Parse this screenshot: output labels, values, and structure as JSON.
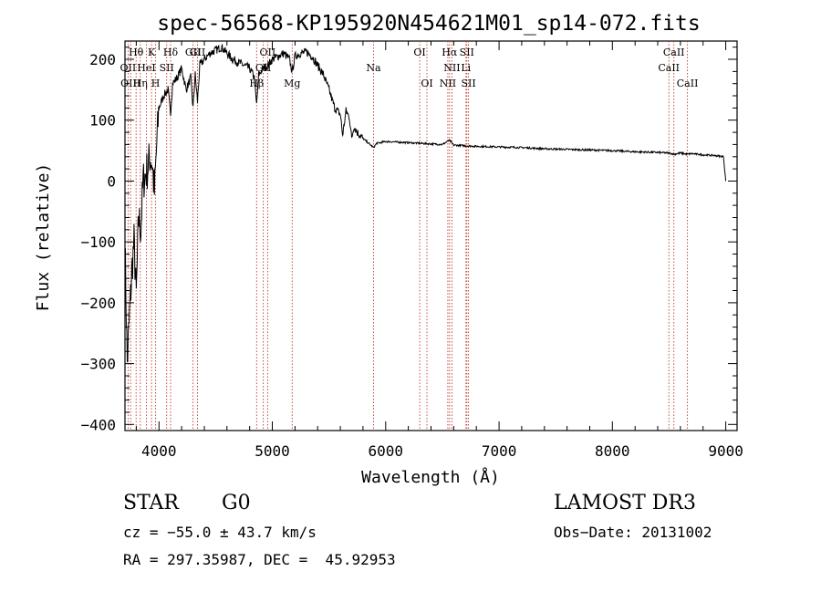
{
  "chart_data": {
    "type": "line",
    "title": "spec-56568-KP195920N454621M01_sp14-072.fits",
    "xlabel": "Wavelength (Å)",
    "ylabel": "Flux (relative)",
    "xlim": [
      3700,
      9100
    ],
    "ylim": [
      -410,
      230
    ],
    "xticks": [
      4000,
      5000,
      6000,
      7000,
      8000,
      9000
    ],
    "yticks": [
      -400,
      -300,
      -200,
      -100,
      0,
      100,
      200
    ],
    "xtick_labels": [
      "4000",
      "5000",
      "6000",
      "7000",
      "8000",
      "9000"
    ],
    "ytick_labels": [
      "−400",
      "−300",
      "−200",
      "−100",
      "0",
      "100",
      "200"
    ],
    "series": [
      {
        "name": "spectrum",
        "x": [
          3700,
          3720,
          3740,
          3760,
          3780,
          3800,
          3820,
          3840,
          3860,
          3880,
          3900,
          3920,
          3940,
          3960,
          3980,
          4000,
          4040,
          4080,
          4102,
          4120,
          4160,
          4200,
          4240,
          4280,
          4300,
          4320,
          4340,
          4360,
          4400,
          4450,
          4500,
          4550,
          4600,
          4650,
          4700,
          4750,
          4800,
          4840,
          4861,
          4880,
          4920,
          4960,
          5000,
          5050,
          5100,
          5150,
          5175,
          5200,
          5250,
          5300,
          5350,
          5400,
          5450,
          5500,
          5550,
          5600,
          5620,
          5650,
          5680,
          5700,
          5720,
          5750,
          5800,
          5850,
          5893,
          5920,
          5950,
          6000,
          6100,
          6200,
          6300,
          6400,
          6500,
          6563,
          6600,
          6700,
          6800,
          7000,
          7200,
          7400,
          7600,
          7800,
          8000,
          8200,
          8400,
          8500,
          8542,
          8600,
          8662,
          8700,
          8800,
          8900,
          8980,
          9000
        ],
        "y": [
          -100,
          -300,
          -220,
          -150,
          -100,
          -190,
          -60,
          -80,
          0,
          10,
          20,
          40,
          30,
          -20,
          60,
          120,
          140,
          150,
          110,
          160,
          170,
          185,
          150,
          170,
          120,
          175,
          130,
          190,
          200,
          210,
          215,
          220,
          210,
          200,
          195,
          190,
          185,
          170,
          125,
          175,
          185,
          190,
          200,
          205,
          210,
          200,
          180,
          205,
          210,
          212,
          205,
          190,
          175,
          150,
          120,
          110,
          75,
          115,
          105,
          70,
          90,
          80,
          70,
          62,
          55,
          62,
          63,
          65,
          64,
          63,
          62,
          61,
          60,
          67,
          59,
          58,
          57,
          56,
          55,
          53,
          52,
          51,
          50,
          48,
          47,
          46,
          44,
          46,
          44,
          45,
          43,
          42,
          40,
          0
        ]
      }
    ],
    "line_labels": [
      {
        "text": "Hθ",
        "wl": 3798,
        "row": 1
      },
      {
        "text": "K",
        "wl": 3934,
        "row": 1
      },
      {
        "text": "Hδ",
        "wl": 4102,
        "row": 1
      },
      {
        "text": "GII",
        "wl": 4300,
        "row": 1
      },
      {
        "text": "GII",
        "wl": 4340,
        "row": 1
      },
      {
        "text": "OII",
        "wl": 4959,
        "row": 1
      },
      {
        "text": "OI",
        "wl": 6300,
        "row": 1
      },
      {
        "text": "Hα",
        "wl": 6563,
        "row": 1
      },
      {
        "text": "SII",
        "wl": 6716,
        "row": 1
      },
      {
        "text": "CaII",
        "wl": 8542,
        "row": 1
      },
      {
        "text": "OII",
        "wl": 3727,
        "row": 2
      },
      {
        "text": "HeI",
        "wl": 3889,
        "row": 2
      },
      {
        "text": "SII",
        "wl": 4068,
        "row": 2
      },
      {
        "text": "GII",
        "wl": 4920,
        "row": 2
      },
      {
        "text": "Na",
        "wl": 5893,
        "row": 2
      },
      {
        "text": "NII",
        "wl": 6584,
        "row": 2
      },
      {
        "text": "Li",
        "wl": 6708,
        "row": 2
      },
      {
        "text": "CaII",
        "wl": 8498,
        "row": 2
      },
      {
        "text": "OIII",
        "wl": 3750,
        "row": 3
      },
      {
        "text": "Hη",
        "wl": 3835,
        "row": 3
      },
      {
        "text": "H",
        "wl": 3970,
        "row": 3
      },
      {
        "text": "Hβ",
        "wl": 4861,
        "row": 3
      },
      {
        "text": "Mg",
        "wl": 5175,
        "row": 3
      },
      {
        "text": "OI",
        "wl": 6364,
        "row": 3
      },
      {
        "text": "NII",
        "wl": 6548,
        "row": 3
      },
      {
        "text": "SII",
        "wl": 6731,
        "row": 3
      },
      {
        "text": "CaII",
        "wl": 8662,
        "row": 3
      }
    ],
    "vlines": [
      3727,
      3750,
      3798,
      3835,
      3889,
      3934,
      3970,
      4068,
      4102,
      4300,
      4340,
      4861,
      4920,
      4959,
      5175,
      5893,
      6300,
      6364,
      6548,
      6563,
      6584,
      6708,
      6716,
      6731,
      8498,
      8542,
      8662
    ]
  },
  "info": {
    "object_class": "STAR",
    "subclass": "G0",
    "survey": "LAMOST DR3",
    "redshift": "cz = −55.0 ± 43.7 km/s",
    "obs_date": "Obs−Date: 20131002",
    "coords": "RA = 297.35987, DEC =  45.92953"
  }
}
